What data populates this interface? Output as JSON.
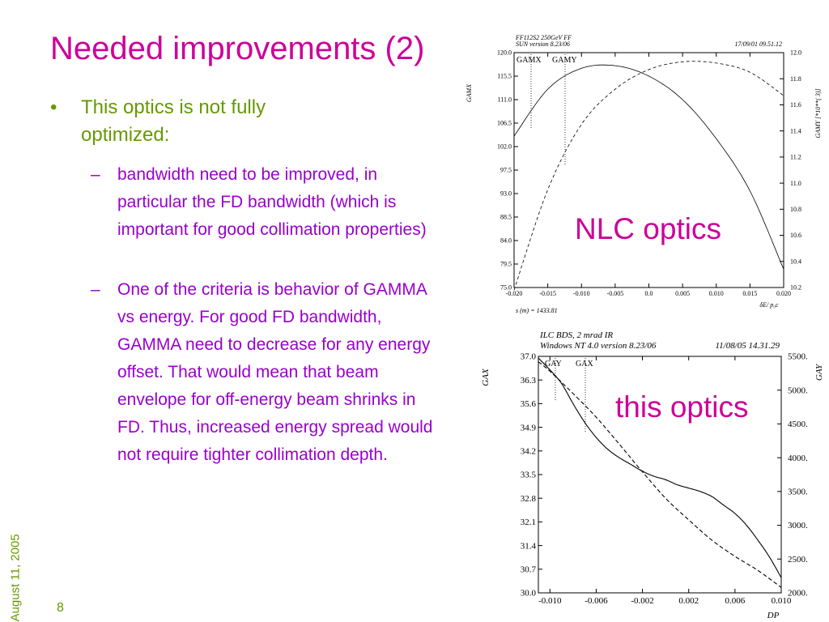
{
  "slide": {
    "title": "Needed improvements (2)",
    "bullet_marker": "•",
    "bullet": "This optics is not fully optimized:",
    "dash": "–",
    "sub1": "bandwidth need to be improved, in particular the FD bandwidth (which is important for good collimation properties)",
    "sub2": "One of the criteria is behavior of GAMMA vs energy. For good FD bandwidth, GAMMA need to decrease for any energy offset. That would mean that beam envelope for off-energy beam shrinks in FD. Thus, increased energy spread would not require tighter collimation depth.",
    "date": "August 11, 2005",
    "page_number": "8",
    "label_top": "NLC optics",
    "label_bottom": "this optics"
  },
  "chart_data": [
    {
      "type": "line",
      "header_left": "FF112S2 250GeV FF",
      "header_left2": "SUN version 8.23/06",
      "header_right": "17/09/01  09.51.12",
      "legend": [
        "GAMX",
        "GAMY"
      ],
      "left_axis_label": "GAMX",
      "right_axis_label": "GAMY  [*10**( 3)]",
      "x_label": "δE/ p₀c",
      "footer": "s (m) =  1433.81",
      "x_ticks": [
        "-0.020",
        "-0.015",
        "-0.010",
        "-0.005",
        "0.0",
        "0.005",
        "0.010",
        "0.015",
        "0.020"
      ],
      "left_ticks": [
        "120.0",
        "115.5",
        "111.0",
        "106.5",
        "102.0",
        "97.5",
        "93.0",
        "88.5",
        "84.0",
        "79.5",
        "75.0"
      ],
      "right_ticks": [
        "12.0",
        "11.8",
        "11.6",
        "11.4",
        "11.2",
        "11.0",
        "10.8",
        "10.6",
        "10.4",
        "10.2"
      ],
      "xlim": [
        -0.02,
        0.02
      ],
      "ylim_left": [
        75.0,
        120.0
      ],
      "ylim_right": [
        10.2,
        12.0
      ],
      "series": [
        {
          "name": "GAMX",
          "axis": "left",
          "style": "solid",
          "x": [
            -0.02,
            -0.015,
            -0.01,
            -0.005,
            0.0,
            0.005,
            0.01,
            0.015,
            0.02
          ],
          "y": [
            104.0,
            113.0,
            117.0,
            117.5,
            115.5,
            111.0,
            103.5,
            93.5,
            78.5
          ]
        },
        {
          "name": "GAMY",
          "axis": "right",
          "style": "dashed",
          "x": [
            -0.02,
            -0.015,
            -0.01,
            -0.005,
            0.0,
            0.005,
            0.01,
            0.015,
            0.02
          ],
          "y": [
            10.18,
            10.95,
            11.45,
            11.72,
            11.87,
            11.93,
            11.92,
            11.85,
            11.67
          ]
        }
      ]
    },
    {
      "type": "line",
      "header_left": "ILC BDS, 2 mrad IR",
      "header_left2": "Windows NT 4.0 version 8.23/06",
      "header_right": "11/08/05  14.31.29",
      "legend": [
        "GAY",
        "GAX"
      ],
      "left_axis_label": "GAX",
      "right_axis_label": "GAY",
      "x_label": "DP",
      "x_ticks": [
        "-0.010",
        "-0.006",
        "-0.002",
        "0.002",
        "0.006",
        "0.010"
      ],
      "left_ticks": [
        "37.0",
        "36.3",
        "35.6",
        "34.9",
        "34.2",
        "33.5",
        "32.8",
        "32.1",
        "31.4",
        "30.7",
        "30.0"
      ],
      "right_ticks": [
        "5500.",
        "5000.",
        "4500.",
        "4000.",
        "3500.",
        "3000.",
        "2500.",
        "2000."
      ],
      "xlim": [
        -0.011,
        0.01
      ],
      "ylim_left": [
        30.0,
        37.0
      ],
      "ylim_right": [
        2000,
        5500
      ],
      "series": [
        {
          "name": "GAX",
          "axis": "left",
          "style": "solid",
          "x": [
            -0.011,
            -0.01,
            -0.009,
            -0.008,
            -0.007,
            -0.006,
            -0.005,
            -0.004,
            -0.003,
            -0.002,
            -0.001,
            0.0,
            0.001,
            0.002,
            0.003,
            0.004,
            0.005,
            0.006,
            0.007,
            0.008,
            0.009,
            0.01
          ],
          "y": [
            36.95,
            36.6,
            36.2,
            35.6,
            35.05,
            34.6,
            34.25,
            34.0,
            33.8,
            33.6,
            33.45,
            33.35,
            33.2,
            33.1,
            33.0,
            32.85,
            32.6,
            32.35,
            32.0,
            31.55,
            31.05,
            30.45
          ]
        },
        {
          "name": "GAY",
          "axis": "right",
          "style": "dashed",
          "x": [
            -0.011,
            -0.01,
            -0.008,
            -0.006,
            -0.004,
            -0.002,
            0.0,
            0.002,
            0.004,
            0.006,
            0.008,
            0.01
          ],
          "y": [
            5420,
            5280,
            4950,
            4600,
            4200,
            3790,
            3400,
            3080,
            2780,
            2540,
            2330,
            2080
          ]
        }
      ]
    }
  ]
}
